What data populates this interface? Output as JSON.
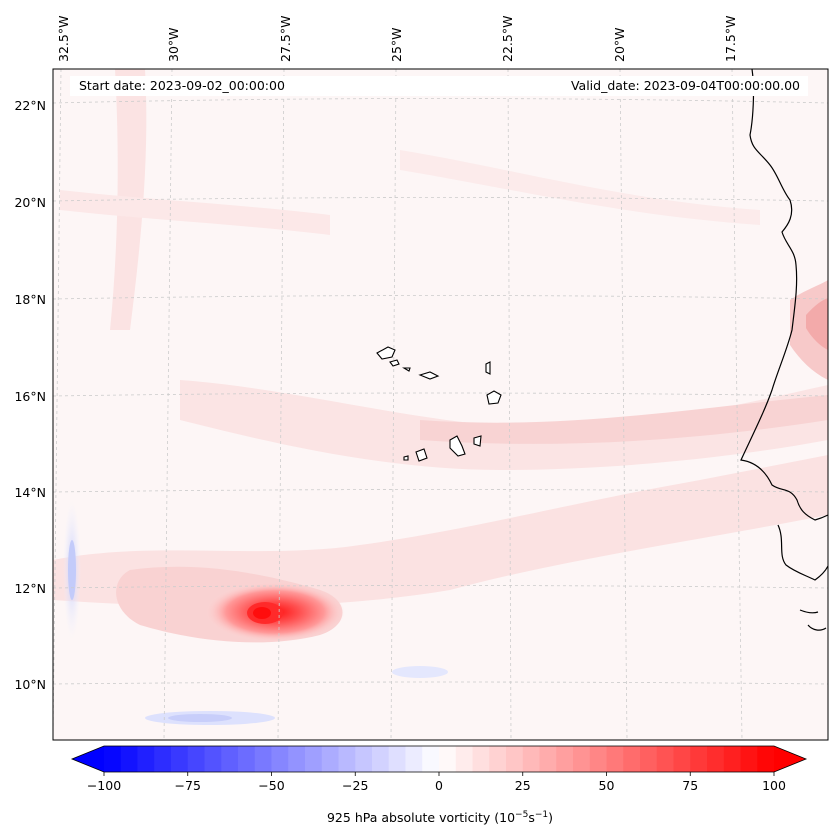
{
  "map": {
    "start_date_label": "Start date: 2023-09-02_00:00:00",
    "valid_date_label": "Valid_date: 2023-09-04T00:00:00.00",
    "lon_labels": [
      "32.5°W",
      "30°W",
      "27.5°W",
      "25°W",
      "22.5°W",
      "20°W",
      "17.5°W"
    ],
    "lat_labels": [
      "22°N",
      "20°N",
      "18°N",
      "16°N",
      "14°N",
      "12°N",
      "10°N"
    ]
  },
  "colorbar": {
    "label_main": "925 hPa absolute vorticity (10",
    "label_exp1": "−5",
    "label_mid": "s",
    "label_exp2": "−1",
    "label_end": ")",
    "ticks": [
      "−100",
      "−75",
      "−50",
      "−25",
      "0",
      "25",
      "50",
      "75",
      "100"
    ],
    "min": -100,
    "max": 100,
    "levels": 40,
    "low_color": "#0000ff",
    "mid_color": "#ffffff",
    "high_color": "#ff0000"
  },
  "features": {
    "vortex_center": {
      "lon": -28.6,
      "lat": 11.4,
      "vorticity": 95
    }
  }
}
